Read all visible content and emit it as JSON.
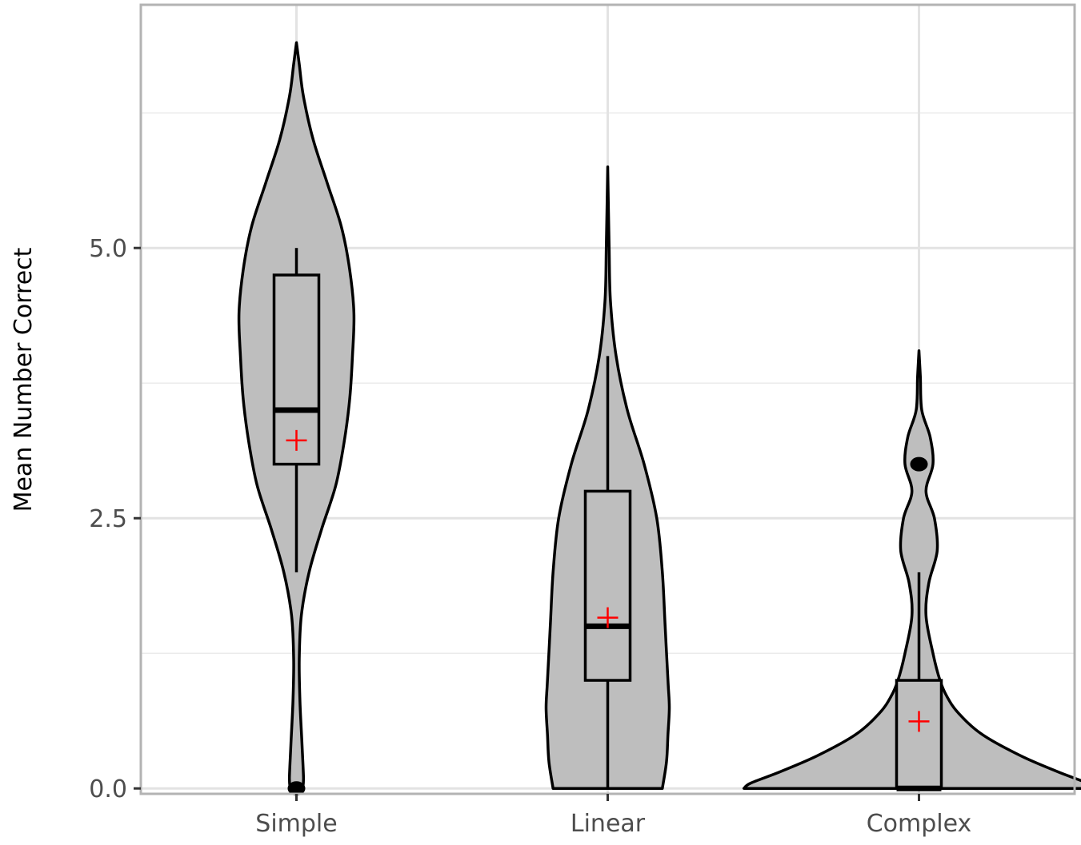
{
  "chart_data": {
    "type": "violin",
    "title": "",
    "xlabel": "",
    "ylabel": "Mean Number Correct",
    "ylim": [
      -0.05,
      7.25
    ],
    "y_ticks": [
      {
        "value": 0,
        "label": "0.0"
      },
      {
        "value": 2.5,
        "label": "2.5"
      },
      {
        "value": 5,
        "label": "5.0"
      }
    ],
    "y_minor_ticks": [
      1.25,
      3.75,
      6.25
    ],
    "grid": true,
    "fill_color": "#bebebe",
    "mean_marker_color": "#ff0000",
    "categories": [
      "Simple",
      "Linear",
      "Complex"
    ],
    "groups": [
      {
        "category": "Simple",
        "box": {
          "whisker_low": 2.0,
          "q1": 3.0,
          "median": 3.5,
          "q3": 4.75,
          "whisker_high": 5.0
        },
        "mean": 3.22,
        "outliers": [
          0
        ],
        "violin_range": [
          0,
          6.9
        ],
        "violin_density": [
          [
            0,
            0.045
          ],
          [
            0.1,
            0.05
          ],
          [
            0.4,
            0.04
          ],
          [
            0.8,
            0.025
          ],
          [
            1.2,
            0.02
          ],
          [
            1.6,
            0.035
          ],
          [
            2.0,
            0.09
          ],
          [
            2.4,
            0.18
          ],
          [
            2.8,
            0.28
          ],
          [
            3.2,
            0.34
          ],
          [
            3.6,
            0.38
          ],
          [
            4.0,
            0.4
          ],
          [
            4.4,
            0.41
          ],
          [
            4.8,
            0.38
          ],
          [
            5.2,
            0.32
          ],
          [
            5.6,
            0.22
          ],
          [
            6.0,
            0.12
          ],
          [
            6.4,
            0.05
          ],
          [
            6.7,
            0.02
          ],
          [
            6.9,
            0.0
          ]
        ]
      },
      {
        "category": "Linear",
        "box": {
          "whisker_low": 0.0,
          "q1": 1.0,
          "median": 1.5,
          "q3": 2.75,
          "whisker_high": 4.0
        },
        "mean": 1.58,
        "outliers": [],
        "violin_range": [
          0,
          5.75
        ],
        "violin_density": [
          [
            0,
            0.39
          ],
          [
            0.25,
            0.42
          ],
          [
            0.5,
            0.43
          ],
          [
            0.75,
            0.44
          ],
          [
            1.0,
            0.43
          ],
          [
            1.5,
            0.41
          ],
          [
            2.0,
            0.39
          ],
          [
            2.5,
            0.35
          ],
          [
            3.0,
            0.26
          ],
          [
            3.5,
            0.14
          ],
          [
            4.0,
            0.06
          ],
          [
            4.5,
            0.02
          ],
          [
            5.0,
            0.01
          ],
          [
            5.75,
            0.0
          ]
        ]
      },
      {
        "category": "Complex",
        "box": {
          "whisker_low": 0.0,
          "q1": 0.0,
          "median": 0.0,
          "q3": 1.0,
          "whisker_high": 2.0
        },
        "mean": 0.62,
        "outliers": [
          3
        ],
        "violin_range": [
          0,
          4.05
        ],
        "violin_density": [
          [
            0,
            1.25
          ],
          [
            0.05,
            1.2
          ],
          [
            0.15,
            1.0
          ],
          [
            0.3,
            0.73
          ],
          [
            0.5,
            0.45
          ],
          [
            0.7,
            0.28
          ],
          [
            0.85,
            0.2
          ],
          [
            1.0,
            0.15
          ],
          [
            1.25,
            0.1
          ],
          [
            1.6,
            0.05
          ],
          [
            1.9,
            0.07
          ],
          [
            2.2,
            0.13
          ],
          [
            2.5,
            0.11
          ],
          [
            2.75,
            0.05
          ],
          [
            3.0,
            0.1
          ],
          [
            3.25,
            0.08
          ],
          [
            3.5,
            0.02
          ],
          [
            3.8,
            0.01
          ],
          [
            4.05,
            0.0
          ]
        ]
      }
    ]
  }
}
